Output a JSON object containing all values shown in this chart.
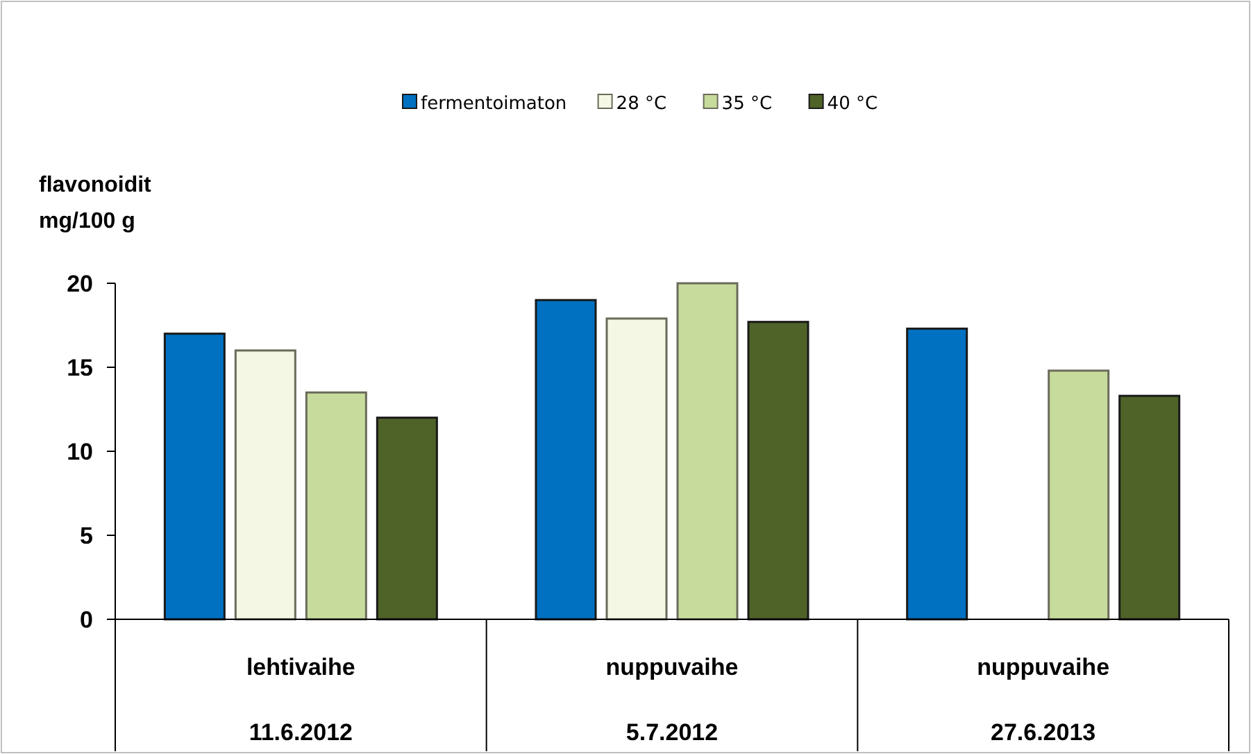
{
  "chart_data": {
    "type": "bar",
    "ylabel": "flavonoidit\nmg/100 g",
    "categories": [
      "lehtivaihe\n11.6.2012",
      "nuppuvaihe\n5.7.2012",
      "nuppuvaihe\n27.6.2013"
    ],
    "series": [
      {
        "name": "fermentoimaton",
        "color": "#0070c0",
        "values": [
          17.0,
          19.0,
          17.3
        ]
      },
      {
        "name": "28 °C",
        "color": "#f3f7e4",
        "values": [
          16.0,
          17.9,
          null
        ]
      },
      {
        "name": "35 °C",
        "color": "#c7dc9c",
        "values": [
          13.5,
          20.0,
          14.8
        ]
      },
      {
        "name": "40 °C",
        "color": "#4f6228",
        "values": [
          12.0,
          17.7,
          13.3
        ]
      }
    ],
    "ylim": [
      0,
      20
    ],
    "yticks": [
      0,
      5,
      10,
      15,
      20
    ],
    "grid": false,
    "legend": "top"
  }
}
